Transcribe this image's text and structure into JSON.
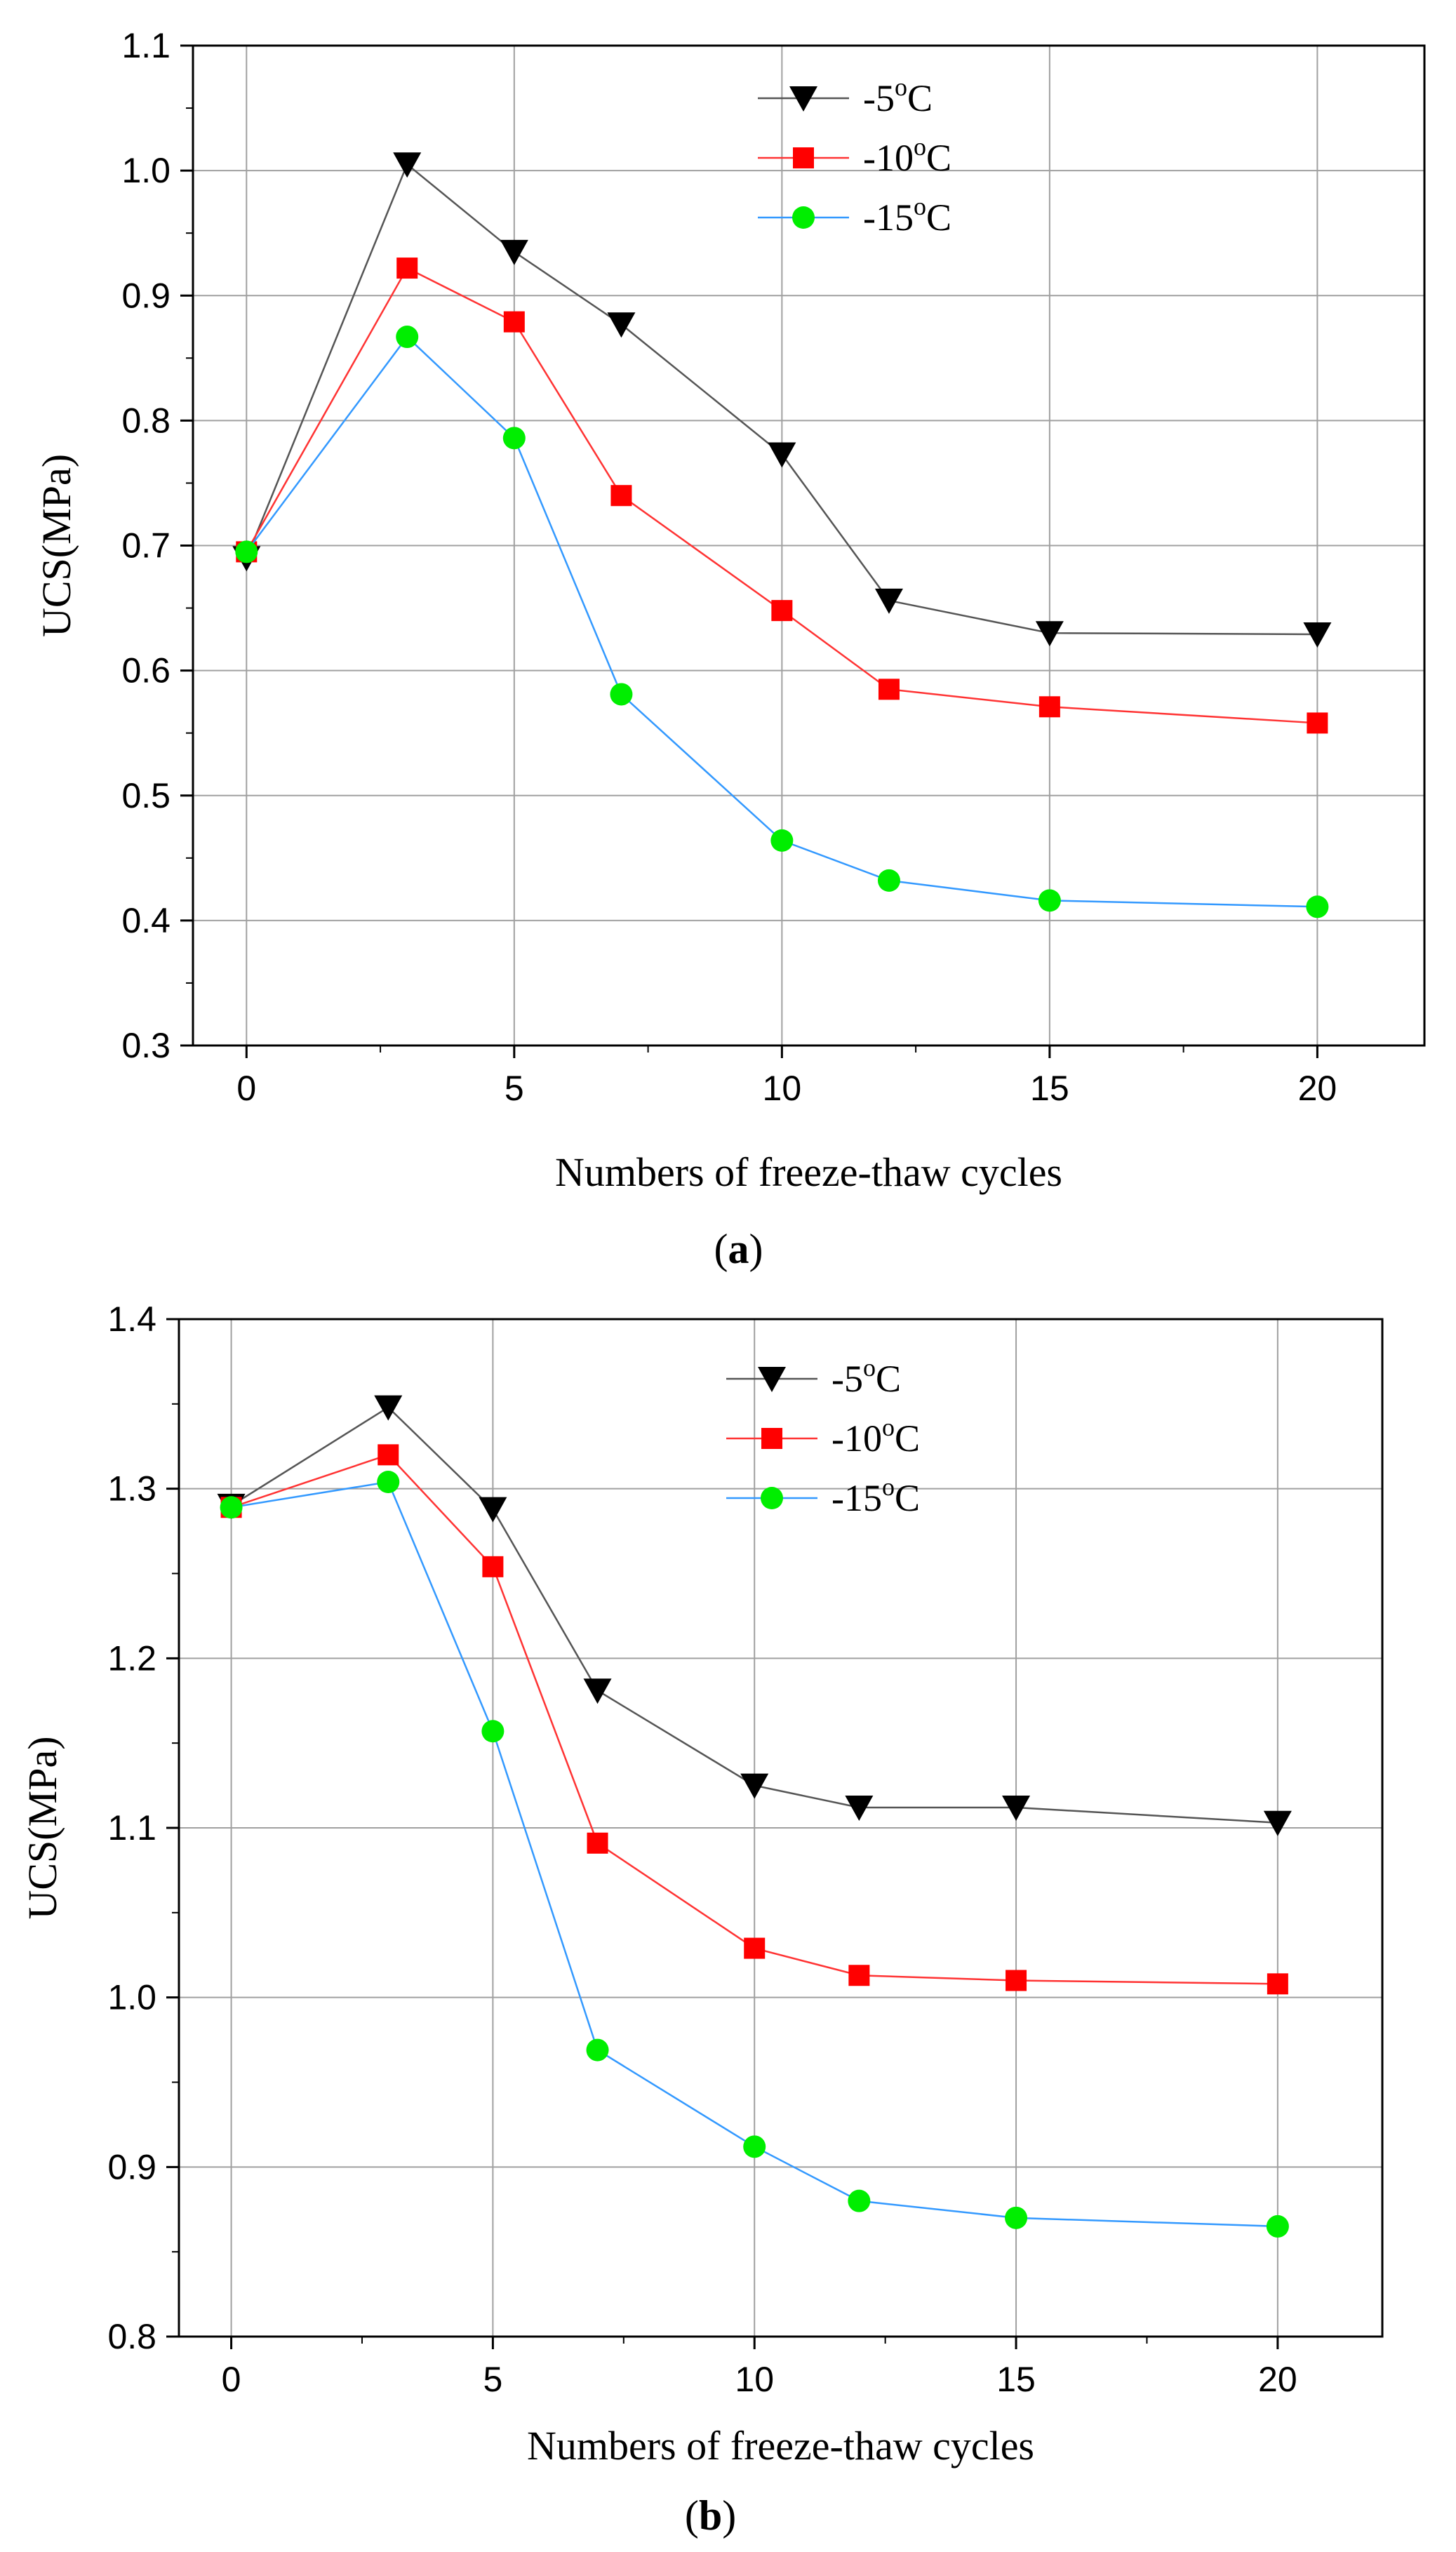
{
  "colors": {
    "minus5": "#000000",
    "minus10": "#ff0000",
    "minus15": "#00ee00",
    "line_minus5": "#555555",
    "line_minus10": "#ff3333",
    "line_minus15": "#3399ff",
    "grid": "#a0a0a0",
    "axis": "#000000"
  },
  "chart_data": [
    {
      "type": "line",
      "panel": "a",
      "caption_open": "(",
      "caption_letter": "a",
      "caption_close": ")",
      "xlabel": "Numbers of freeze-thaw cycles",
      "ylabel": "UCS(MPa)",
      "xlim": [
        -1,
        22
      ],
      "ylim": [
        0.3,
        1.1
      ],
      "xticks": [
        0,
        5,
        10,
        15,
        20
      ],
      "yticks": [
        0.3,
        0.4,
        0.5,
        0.6,
        0.7,
        0.8,
        0.9,
        1.0,
        1.1
      ],
      "ytick_labels": [
        "0.3",
        "0.4",
        "0.5",
        "0.6",
        "0.7",
        "0.8",
        "0.9",
        "1.0",
        "1.1"
      ],
      "x": [
        0,
        3,
        5,
        7,
        10,
        12,
        15,
        20
      ],
      "legend_position": "top-center",
      "series": [
        {
          "name": "-5",
          "unit_sup": "o",
          "unit": "C",
          "marker": "triangle-down",
          "values": [
            0.69,
            1.005,
            0.935,
            0.877,
            0.773,
            0.656,
            0.63,
            0.629
          ]
        },
        {
          "name": "-10",
          "unit_sup": "o",
          "unit": "C",
          "marker": "square",
          "values": [
            0.695,
            0.922,
            0.879,
            0.74,
            0.648,
            0.585,
            0.571,
            0.558
          ]
        },
        {
          "name": "-15",
          "unit_sup": "o",
          "unit": "C",
          "marker": "circle",
          "values": [
            0.695,
            0.867,
            0.786,
            0.581,
            0.464,
            0.432,
            0.416,
            0.411
          ]
        }
      ]
    },
    {
      "type": "line",
      "panel": "b",
      "caption_open": "(",
      "caption_letter": "b",
      "caption_close": ")",
      "xlabel": "Numbers of freeze-thaw cycles",
      "ylabel": "UCS(MPa)",
      "xlim": [
        -1,
        22
      ],
      "ylim": [
        0.8,
        1.4
      ],
      "xticks": [
        0,
        5,
        10,
        15,
        20
      ],
      "yticks": [
        0.8,
        0.9,
        1.0,
        1.1,
        1.2,
        1.3,
        1.4
      ],
      "ytick_labels": [
        "0.8",
        "0.9",
        "1.0",
        "1.1",
        "1.2",
        "1.3",
        "1.4"
      ],
      "x": [
        0,
        3,
        5,
        7,
        10,
        12,
        15,
        20
      ],
      "legend_position": "top-center",
      "series": [
        {
          "name": "-5",
          "unit_sup": "o",
          "unit": "C",
          "marker": "triangle-down",
          "values": [
            1.29,
            1.348,
            1.288,
            1.181,
            1.125,
            1.112,
            1.112,
            1.103
          ]
        },
        {
          "name": "-10",
          "unit_sup": "o",
          "unit": "C",
          "marker": "square",
          "values": [
            1.289,
            1.32,
            1.254,
            1.091,
            1.029,
            1.013,
            1.01,
            1.008
          ]
        },
        {
          "name": "-15",
          "unit_sup": "o",
          "unit": "C",
          "marker": "circle",
          "values": [
            1.289,
            1.304,
            1.157,
            0.969,
            0.912,
            0.88,
            0.87,
            0.865
          ]
        }
      ]
    }
  ]
}
